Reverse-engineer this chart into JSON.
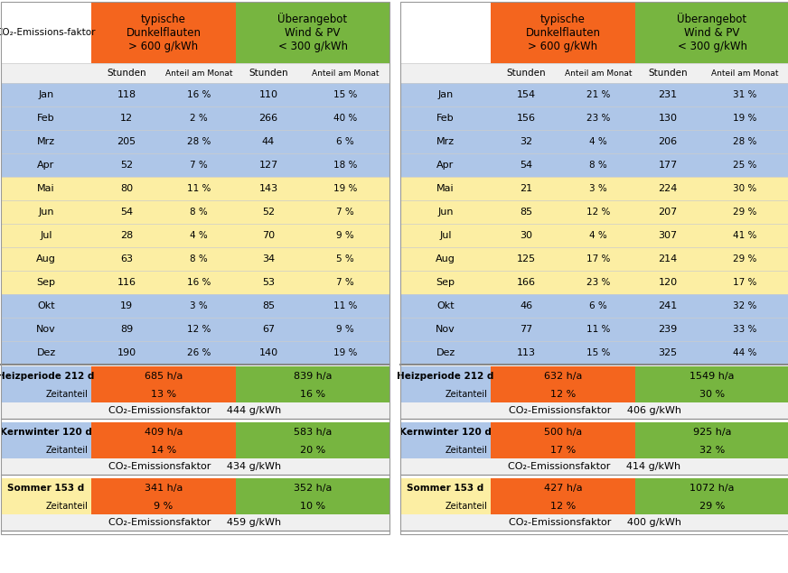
{
  "header_orange": "typische\nDunkelflauten\n> 600 g/kWh",
  "header_green": "Überangebot\nWind & PV\n< 300 g/kWh",
  "subheader": [
    "Stunden",
    "Anteil am Monat",
    "Stunden",
    "Anteil am Monat"
  ],
  "months": [
    "Jan",
    "Feb",
    "Mrz",
    "Apr",
    "Mai",
    "Jun",
    "Jul",
    "Aug",
    "Sep",
    "Okt",
    "Nov",
    "Dez"
  ],
  "left_table": [
    [
      118,
      "16 %",
      110,
      "15 %"
    ],
    [
      12,
      "2 %",
      266,
      "40 %"
    ],
    [
      205,
      "28 %",
      44,
      "6 %"
    ],
    [
      52,
      "7 %",
      127,
      "18 %"
    ],
    [
      80,
      "11 %",
      143,
      "19 %"
    ],
    [
      54,
      "8 %",
      52,
      "7 %"
    ],
    [
      28,
      "4 %",
      70,
      "9 %"
    ],
    [
      63,
      "8 %",
      34,
      "5 %"
    ],
    [
      116,
      "16 %",
      53,
      "7 %"
    ],
    [
      19,
      "3 %",
      85,
      "11 %"
    ],
    [
      89,
      "12 %",
      67,
      "9 %"
    ],
    [
      190,
      "26 %",
      140,
      "19 %"
    ]
  ],
  "right_table": [
    [
      154,
      "21 %",
      231,
      "31 %"
    ],
    [
      156,
      "23 %",
      130,
      "19 %"
    ],
    [
      32,
      "4 %",
      206,
      "28 %"
    ],
    [
      54,
      "8 %",
      177,
      "25 %"
    ],
    [
      21,
      "3 %",
      224,
      "30 %"
    ],
    [
      85,
      "12 %",
      207,
      "29 %"
    ],
    [
      30,
      "4 %",
      307,
      "41 %"
    ],
    [
      125,
      "17 %",
      214,
      "29 %"
    ],
    [
      166,
      "23 %",
      120,
      "17 %"
    ],
    [
      46,
      "6 %",
      241,
      "32 %"
    ],
    [
      77,
      "11 %",
      239,
      "33 %"
    ],
    [
      113,
      "15 %",
      325,
      "44 %"
    ]
  ],
  "summary_left": [
    {
      "label": "Heizperiode 212 d",
      "orange": "685 h/a",
      "green": "839 h/a",
      "zt_orange": "13 %",
      "zt_green": "16 %",
      "co2": "444 g/kWh",
      "bg": "blue"
    },
    {
      "label": "Kernwinter 120 d",
      "orange": "409 h/a",
      "green": "583 h/a",
      "zt_orange": "14 %",
      "zt_green": "20 %",
      "co2": "434 g/kWh",
      "bg": "blue"
    },
    {
      "label": "Sommer 153 d",
      "orange": "341 h/a",
      "green": "352 h/a",
      "zt_orange": "9 %",
      "zt_green": "10 %",
      "co2": "459 g/kWh",
      "bg": "yellow"
    }
  ],
  "summary_right": [
    {
      "label": "Heizperiode 212 d",
      "orange": "632 h/a",
      "green": "1549 h/a",
      "zt_orange": "12 %",
      "zt_green": "30 %",
      "co2": "406 g/kWh",
      "bg": "blue"
    },
    {
      "label": "Kernwinter 120 d",
      "orange": "500 h/a",
      "green": "925 h/a",
      "zt_orange": "17 %",
      "zt_green": "32 %",
      "co2": "414 g/kWh",
      "bg": "blue"
    },
    {
      "label": "Sommer 153 d",
      "orange": "427 h/a",
      "green": "1072 h/a",
      "zt_orange": "12 %",
      "zt_green": "29 %",
      "co2": "400 g/kWh",
      "bg": "yellow"
    }
  ],
  "color_orange": "#F4651E",
  "color_green": "#77B540",
  "color_blue": "#AEC6E8",
  "color_yellow": "#FCEEA3",
  "color_white": "#FFFFFF",
  "row_colors": [
    "blue",
    "blue",
    "blue",
    "blue",
    "yellow",
    "yellow",
    "yellow",
    "yellow",
    "yellow",
    "blue",
    "blue",
    "blue"
  ]
}
